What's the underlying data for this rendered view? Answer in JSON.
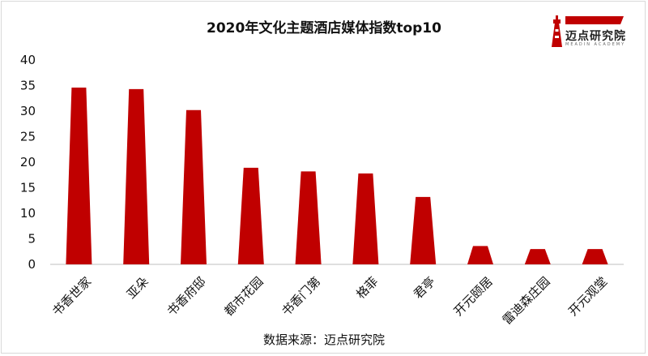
{
  "colors": {
    "bar": "#c00000",
    "axis": "#bfbfbf",
    "text": "#111111",
    "logo_red": "#c00000"
  },
  "logo": {
    "name": "迈点研究院",
    "subtitle": "MEADIN ACADEMY"
  },
  "source_text": "数据来源：迈点研究院",
  "chart_data": {
    "type": "bar",
    "title": "2020年文化主题酒店媒体指数top10",
    "xlabel": "",
    "ylabel": "",
    "ylim": [
      0,
      40
    ],
    "yticks": [
      "0",
      "5",
      "10",
      "15",
      "20",
      "25",
      "30",
      "35",
      "40"
    ],
    "grid": false,
    "categories": [
      "书香世家",
      "亚朵",
      "书香府邸",
      "都市花园",
      "书香门第",
      "格菲",
      "君亭",
      "开元颐居",
      "雷迪森庄园",
      "开元观堂"
    ],
    "values": [
      34.6,
      34.3,
      30.2,
      18.9,
      18.2,
      17.8,
      13.2,
      3.6,
      3.0,
      3.0
    ]
  }
}
